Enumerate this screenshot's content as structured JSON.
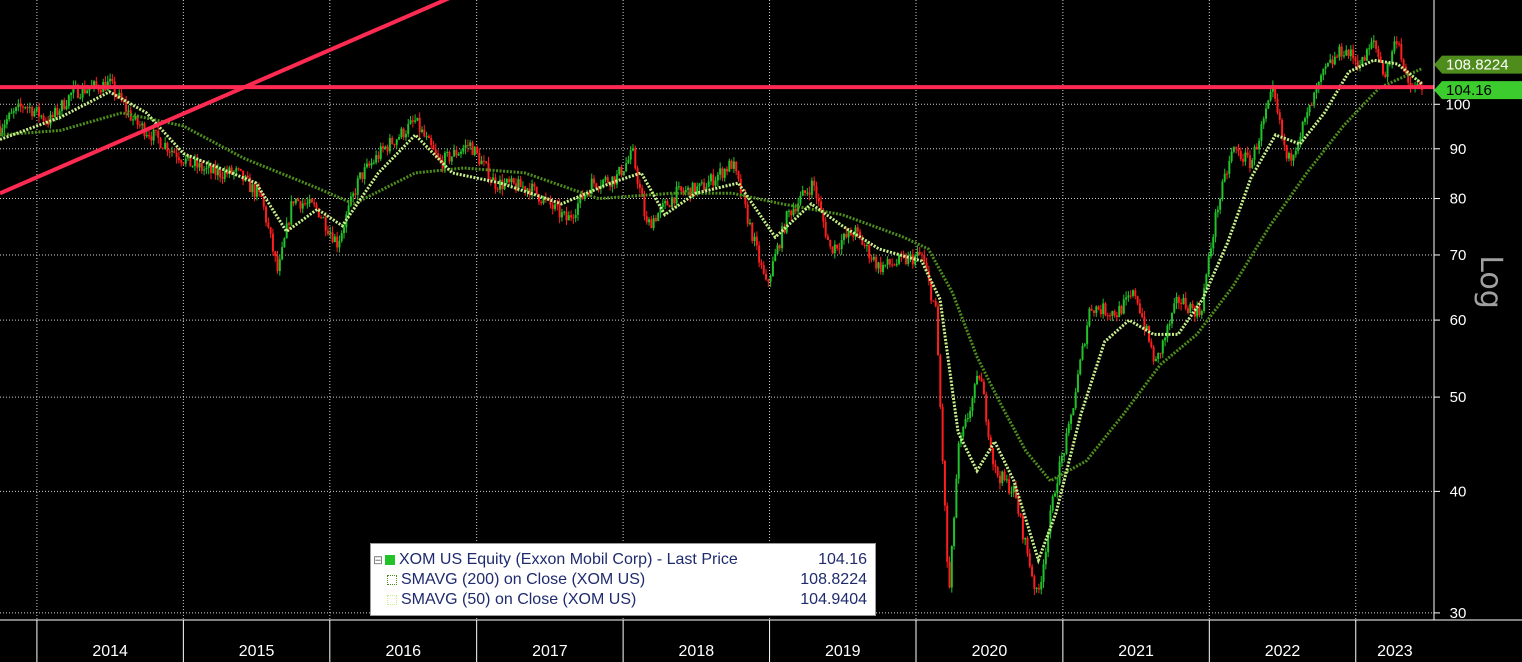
{
  "chart_data": {
    "type": "line",
    "ticker": "XOM US Equity",
    "scale_label": "Log",
    "y_scale": "log",
    "ylim": [
      29.5,
      128
    ],
    "y_ticks": [
      "100",
      "90",
      "80",
      "70",
      "60",
      "50",
      "40",
      "30"
    ],
    "x_labels": [
      "2014",
      "2015",
      "2016",
      "2017",
      "2018",
      "2019",
      "2020",
      "2021",
      "2022",
      "2023"
    ],
    "grid": true,
    "legend_position": "bottom-center",
    "colors": {
      "up": "#22c22a",
      "down": "#ff1e1e",
      "sma200": "#4e8c1c",
      "sma50": "#c8f08a",
      "annotation": "#ff2a52",
      "tag200_bg": "#4e8c1c",
      "tag_last_bg": "#3ccc2e"
    },
    "price_series": [
      [
        "2013-10-01",
        95
      ],
      [
        "2013-12-01",
        100
      ],
      [
        "2014-02-01",
        96
      ],
      [
        "2014-04-01",
        103
      ],
      [
        "2014-07-01",
        105
      ],
      [
        "2014-09-01",
        96
      ],
      [
        "2014-12-01",
        90
      ],
      [
        "2015-01-15",
        87
      ],
      [
        "2015-03-15",
        85
      ],
      [
        "2015-05-15",
        85
      ],
      [
        "2015-07-15",
        80
      ],
      [
        "2015-08-25",
        67
      ],
      [
        "2015-10-01",
        80
      ],
      [
        "2015-12-01",
        78
      ],
      [
        "2016-01-20",
        72
      ],
      [
        "2016-03-15",
        84
      ],
      [
        "2016-05-15",
        90
      ],
      [
        "2016-08-01",
        96
      ],
      [
        "2016-10-01",
        87
      ],
      [
        "2016-12-15",
        91
      ],
      [
        "2017-02-15",
        83
      ],
      [
        "2017-05-15",
        82
      ],
      [
        "2017-08-15",
        76
      ],
      [
        "2017-10-15",
        83
      ],
      [
        "2017-12-15",
        84
      ],
      [
        "2018-01-25",
        89
      ],
      [
        "2018-03-01",
        75
      ],
      [
        "2018-05-15",
        81
      ],
      [
        "2018-07-15",
        82
      ],
      [
        "2018-10-01",
        87
      ],
      [
        "2018-12-24",
        65
      ],
      [
        "2019-02-15",
        77
      ],
      [
        "2019-04-20",
        83
      ],
      [
        "2019-06-01",
        71
      ],
      [
        "2019-08-01",
        74
      ],
      [
        "2019-10-01",
        68
      ],
      [
        "2019-12-01",
        69
      ],
      [
        "2020-01-15",
        70
      ],
      [
        "2020-02-20",
        61
      ],
      [
        "2020-03-23",
        31
      ],
      [
        "2020-04-15",
        44
      ],
      [
        "2020-06-08",
        53
      ],
      [
        "2020-07-15",
        42
      ],
      [
        "2020-09-01",
        40
      ],
      [
        "2020-10-30",
        31
      ],
      [
        "2020-12-15",
        41
      ],
      [
        "2021-01-15",
        46
      ],
      [
        "2021-03-10",
        62
      ],
      [
        "2021-05-15",
        61
      ],
      [
        "2021-07-01",
        64
      ],
      [
        "2021-08-20",
        54
      ],
      [
        "2021-10-15",
        63
      ],
      [
        "2021-12-10",
        61
      ],
      [
        "2022-01-20",
        78
      ],
      [
        "2022-03-01",
        90
      ],
      [
        "2022-04-15",
        87
      ],
      [
        "2022-06-08",
        103
      ],
      [
        "2022-07-15",
        87
      ],
      [
        "2022-09-01",
        97
      ],
      [
        "2022-10-15",
        108
      ],
      [
        "2022-11-30",
        114
      ],
      [
        "2023-01-15",
        110
      ],
      [
        "2023-02-15",
        116
      ],
      [
        "2023-03-15",
        107
      ],
      [
        "2023-04-15",
        118
      ],
      [
        "2023-05-10",
        104
      ],
      [
        "2023-06-15",
        104.16
      ]
    ],
    "sma200_series": [
      [
        "2013-10-01",
        93
      ],
      [
        "2014-03-01",
        94
      ],
      [
        "2014-08-01",
        98
      ],
      [
        "2015-01-01",
        95
      ],
      [
        "2015-06-01",
        88
      ],
      [
        "2015-12-01",
        82
      ],
      [
        "2016-03-01",
        79
      ],
      [
        "2016-08-01",
        85
      ],
      [
        "2016-12-01",
        86
      ],
      [
        "2017-05-01",
        85
      ],
      [
        "2017-11-01",
        80
      ],
      [
        "2018-05-01",
        81
      ],
      [
        "2018-10-01",
        81
      ],
      [
        "2019-02-01",
        79
      ],
      [
        "2019-07-01",
        77
      ],
      [
        "2019-12-01",
        73
      ],
      [
        "2020-02-01",
        71
      ],
      [
        "2020-04-01",
        64
      ],
      [
        "2020-06-01",
        55
      ],
      [
        "2020-08-01",
        49
      ],
      [
        "2020-10-01",
        44
      ],
      [
        "2020-12-01",
        41
      ],
      [
        "2021-03-01",
        43
      ],
      [
        "2021-06-01",
        48
      ],
      [
        "2021-09-01",
        54
      ],
      [
        "2021-12-01",
        58
      ],
      [
        "2022-03-01",
        65
      ],
      [
        "2022-06-01",
        75
      ],
      [
        "2022-09-01",
        85
      ],
      [
        "2022-12-01",
        95
      ],
      [
        "2023-03-01",
        104
      ],
      [
        "2023-06-15",
        108.8224
      ]
    ],
    "sma50_series": [
      [
        "2013-10-01",
        92
      ],
      [
        "2014-03-01",
        97
      ],
      [
        "2014-07-01",
        103
      ],
      [
        "2014-10-01",
        98
      ],
      [
        "2015-01-01",
        89
      ],
      [
        "2015-04-01",
        86
      ],
      [
        "2015-07-01",
        83
      ],
      [
        "2015-09-15",
        74
      ],
      [
        "2015-12-01",
        78
      ],
      [
        "2016-02-01",
        75
      ],
      [
        "2016-05-01",
        85
      ],
      [
        "2016-08-01",
        93
      ],
      [
        "2016-11-01",
        85
      ],
      [
        "2017-03-01",
        83
      ],
      [
        "2017-08-01",
        79
      ],
      [
        "2017-12-01",
        83
      ],
      [
        "2018-02-15",
        85
      ],
      [
        "2018-04-15",
        77
      ],
      [
        "2018-07-01",
        81
      ],
      [
        "2018-10-15",
        83
      ],
      [
        "2019-01-15",
        73
      ],
      [
        "2019-04-15",
        79
      ],
      [
        "2019-07-01",
        75
      ],
      [
        "2019-10-01",
        71
      ],
      [
        "2020-01-15",
        69
      ],
      [
        "2020-03-01",
        63
      ],
      [
        "2020-04-15",
        46
      ],
      [
        "2020-06-01",
        42
      ],
      [
        "2020-07-15",
        45
      ],
      [
        "2020-09-01",
        41
      ],
      [
        "2020-11-01",
        34
      ],
      [
        "2020-12-15",
        38
      ],
      [
        "2021-02-15",
        48
      ],
      [
        "2021-04-15",
        57
      ],
      [
        "2021-06-15",
        60
      ],
      [
        "2021-08-15",
        58
      ],
      [
        "2021-10-15",
        58
      ],
      [
        "2021-12-15",
        63
      ],
      [
        "2022-02-15",
        72
      ],
      [
        "2022-04-15",
        84
      ],
      [
        "2022-06-15",
        93
      ],
      [
        "2022-08-15",
        91
      ],
      [
        "2022-10-15",
        98
      ],
      [
        "2022-12-15",
        108
      ],
      [
        "2023-02-15",
        111
      ],
      [
        "2023-04-15",
        110
      ],
      [
        "2023-06-15",
        104.9404
      ]
    ],
    "horizontal_line_value": 104.16,
    "trendline": [
      [
        "2013-10-01",
        81
      ],
      [
        "2017-02-20",
        135
      ]
    ],
    "value_tags": [
      "108.8224",
      "104.16"
    ],
    "legend": [
      {
        "label": "XOM US Equity (Exxon Mobil Corp) - Last Price",
        "value": "104.16"
      },
      {
        "label": "SMAVG (200)  on Close (XOM US)",
        "value": "108.8224"
      },
      {
        "label": "SMAVG (50)  on Close (XOM US)",
        "value": "104.9404"
      }
    ]
  }
}
